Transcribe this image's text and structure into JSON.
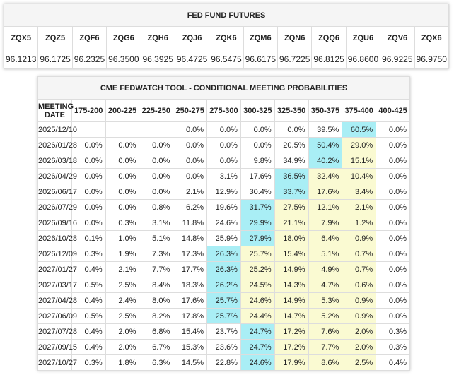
{
  "futures": {
    "title": "FED FUND FUTURES",
    "codes": [
      "ZQX5",
      "ZQZ5",
      "ZQF6",
      "ZQG6",
      "ZQH6",
      "ZQJ6",
      "ZQK6",
      "ZQM6",
      "ZQN6",
      "ZQQ6",
      "ZQU6",
      "ZQV6",
      "ZQX6"
    ],
    "prices": [
      "96.1213",
      "96.1725",
      "96.2325",
      "96.3500",
      "96.3925",
      "96.4725",
      "96.5475",
      "96.6175",
      "96.7225",
      "96.8125",
      "96.8600",
      "96.9225",
      "96.9750"
    ]
  },
  "probabilities": {
    "title": "CME FEDWATCH TOOL - CONDITIONAL MEETING PROBABILITIES",
    "headers": [
      "MEETING DATE",
      "175-200",
      "200-225",
      "225-250",
      "250-275",
      "275-300",
      "300-325",
      "325-350",
      "350-375",
      "375-400",
      "400-425"
    ],
    "rows": [
      [
        "2025/12/10",
        null,
        null,
        null,
        "0.0%",
        "0.0%",
        "0.0%",
        "0.0%",
        "39.5%",
        "60.5%",
        "0.0%"
      ],
      [
        "2026/01/28",
        "0.0%",
        "0.0%",
        "0.0%",
        "0.0%",
        "0.0%",
        "0.0%",
        "20.5%",
        "50.4%",
        "29.0%",
        "0.0%"
      ],
      [
        "2026/03/18",
        "0.0%",
        "0.0%",
        "0.0%",
        "0.0%",
        "0.0%",
        "9.8%",
        "34.9%",
        "40.2%",
        "15.1%",
        "0.0%"
      ],
      [
        "2026/04/29",
        "0.0%",
        "0.0%",
        "0.0%",
        "0.0%",
        "3.1%",
        "17.6%",
        "36.5%",
        "32.4%",
        "10.4%",
        "0.0%"
      ],
      [
        "2026/06/17",
        "0.0%",
        "0.0%",
        "0.0%",
        "2.1%",
        "12.9%",
        "30.4%",
        "33.7%",
        "17.6%",
        "3.4%",
        "0.0%"
      ],
      [
        "2026/07/29",
        "0.0%",
        "0.0%",
        "0.8%",
        "6.2%",
        "19.6%",
        "31.7%",
        "27.5%",
        "12.1%",
        "2.1%",
        "0.0%"
      ],
      [
        "2026/09/16",
        "0.0%",
        "0.3%",
        "3.1%",
        "11.8%",
        "24.6%",
        "29.9%",
        "21.1%",
        "7.9%",
        "1.2%",
        "0.0%"
      ],
      [
        "2026/10/28",
        "0.1%",
        "1.0%",
        "5.1%",
        "14.8%",
        "25.9%",
        "27.9%",
        "18.0%",
        "6.4%",
        "0.9%",
        "0.0%"
      ],
      [
        "2026/12/09",
        "0.3%",
        "1.9%",
        "7.3%",
        "17.3%",
        "26.3%",
        "25.7%",
        "15.4%",
        "5.1%",
        "0.7%",
        "0.0%"
      ],
      [
        "2027/01/27",
        "0.4%",
        "2.1%",
        "7.7%",
        "17.7%",
        "26.3%",
        "25.2%",
        "14.9%",
        "4.9%",
        "0.7%",
        "0.0%"
      ],
      [
        "2027/03/17",
        "0.5%",
        "2.5%",
        "8.4%",
        "18.3%",
        "26.2%",
        "24.5%",
        "14.3%",
        "4.7%",
        "0.6%",
        "0.0%"
      ],
      [
        "2027/04/28",
        "0.4%",
        "2.4%",
        "8.0%",
        "17.6%",
        "25.7%",
        "24.6%",
        "14.9%",
        "5.3%",
        "0.9%",
        "0.0%"
      ],
      [
        "2027/06/09",
        "0.5%",
        "2.5%",
        "8.2%",
        "17.8%",
        "25.7%",
        "24.4%",
        "14.7%",
        "5.2%",
        "0.9%",
        "0.0%"
      ],
      [
        "2027/07/28",
        "0.4%",
        "2.0%",
        "6.8%",
        "15.4%",
        "23.7%",
        "24.7%",
        "17.2%",
        "7.6%",
        "2.0%",
        "0.3%"
      ],
      [
        "2027/09/15",
        "0.4%",
        "2.0%",
        "6.7%",
        "15.3%",
        "23.6%",
        "24.7%",
        "17.2%",
        "7.7%",
        "2.0%",
        "0.3%"
      ],
      [
        "2027/10/27",
        "0.3%",
        "1.8%",
        "6.3%",
        "14.5%",
        "22.8%",
        "24.6%",
        "17.9%",
        "8.6%",
        "2.5%",
        "0.4%"
      ]
    ]
  }
}
